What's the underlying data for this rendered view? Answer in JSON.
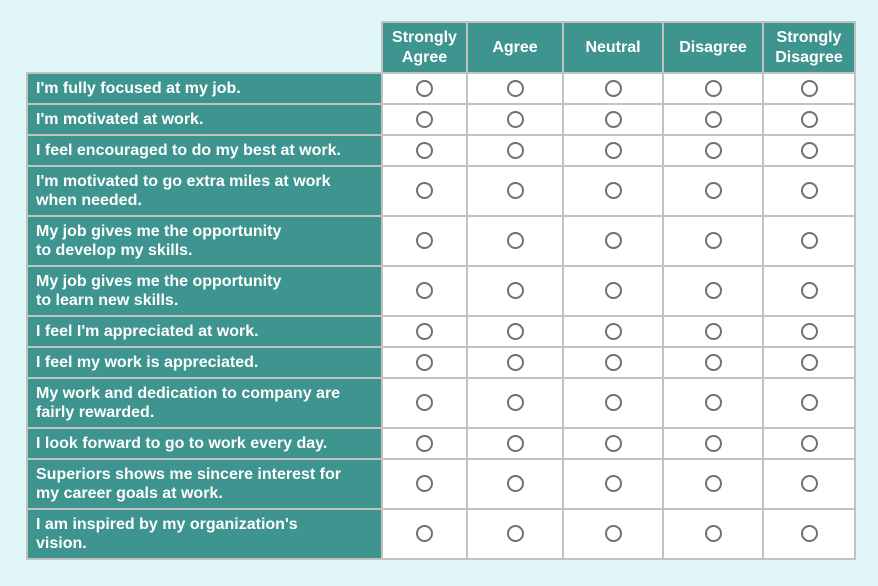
{
  "survey": {
    "columns": [
      "Strongly\nAgree",
      "Agree",
      "Neutral",
      "Disagree",
      "Strongly\nDisagree"
    ],
    "rows": [
      {
        "label": "I'm fully focused at my job."
      },
      {
        "label": "I'm motivated at work."
      },
      {
        "label": "I feel encouraged to do my best at work."
      },
      {
        "label": "I'm motivated to go extra miles at work\nwhen needed."
      },
      {
        "label": "My job gives me the opportunity\nto develop my skills."
      },
      {
        "label": "My job gives me the opportunity\nto learn new skills."
      },
      {
        "label": "I feel I'm appreciated at work."
      },
      {
        "label": "I feel my work is appreciated."
      },
      {
        "label": "My work and dedication to company are\nfairly rewarded."
      },
      {
        "label": "I look forward to go to work every day."
      },
      {
        "label": "Superiors shows me sincere interest for\nmy career goals at work."
      },
      {
        "label": "I am inspired by my organization's\nvision."
      }
    ],
    "radio_state": "all-unselected"
  },
  "colors": {
    "background": "#e1f6f9",
    "teal": "#3e948f",
    "border": "#c2c2c2",
    "cell_bg": "#ffffff",
    "radio_ring": "#717171",
    "text_on_teal": "#ffffff"
  }
}
